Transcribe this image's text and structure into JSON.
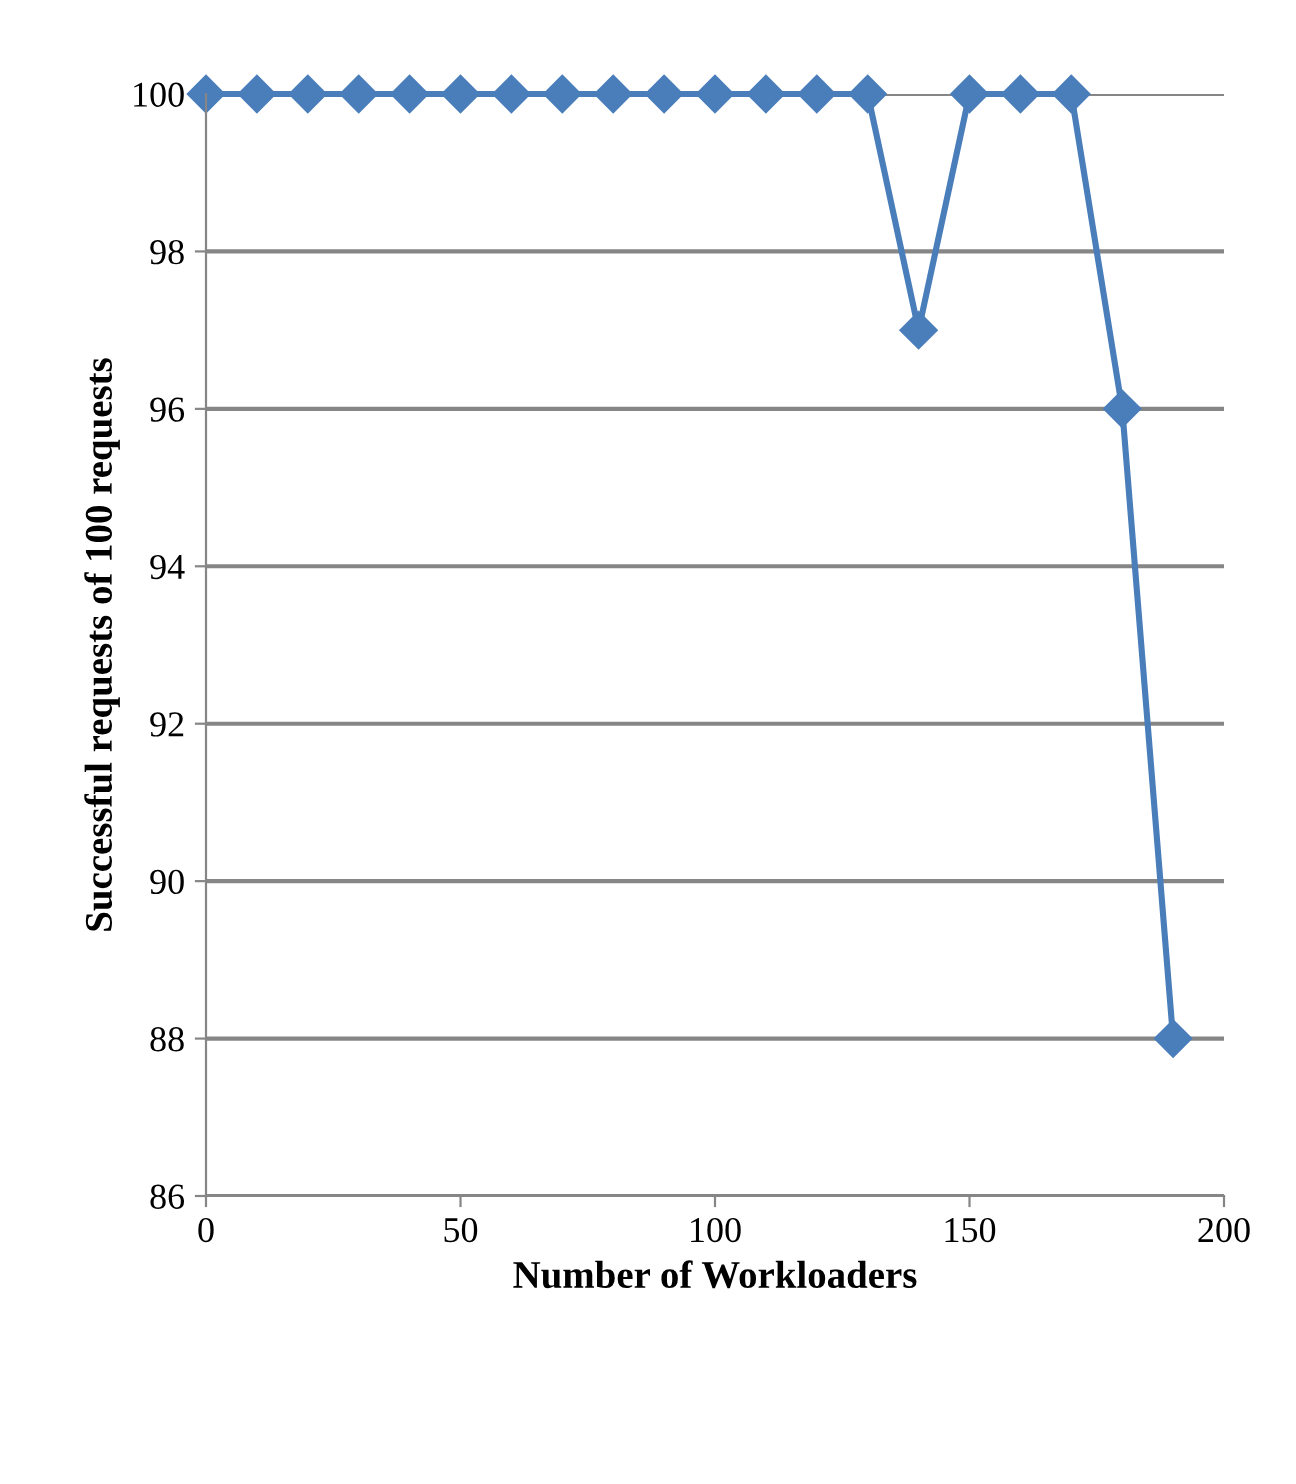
{
  "chart_data": {
    "type": "line",
    "xlabel": "Number of Workloaders",
    "ylabel": "Successful requests of 100 requests",
    "x": [
      0,
      10,
      20,
      30,
      40,
      50,
      60,
      70,
      80,
      90,
      100,
      110,
      120,
      130,
      140,
      150,
      160,
      170,
      180,
      190
    ],
    "series": [
      {
        "color": "#4a7ebb",
        "values": [
          100,
          100,
          100,
          100,
          100,
          100,
          100,
          100,
          100,
          100,
          100,
          100,
          100,
          100,
          97,
          100,
          100,
          100,
          96,
          88
        ]
      }
    ],
    "xlim": [
      0,
      200
    ],
    "xticks": [
      0,
      50,
      100,
      150,
      200
    ],
    "ylim": [
      86,
      100
    ],
    "yticks": [
      86,
      88,
      90,
      92,
      94,
      96,
      98,
      100
    ],
    "grid": "y",
    "marker": "diamond",
    "line_style": "solid"
  }
}
